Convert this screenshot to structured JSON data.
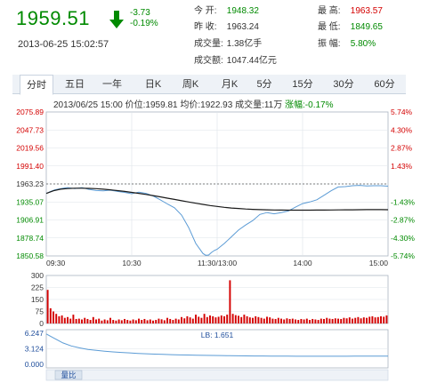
{
  "quote": {
    "price": "1959.51",
    "change": "-3.73",
    "change_pct": "-0.19%",
    "timestamp": "2013-06-25 15:02:57",
    "stats": [
      {
        "label": "今  开:",
        "value": "1948.32",
        "color": "green"
      },
      {
        "label": "昨  收:",
        "value": "1963.24",
        "color": "neutral"
      },
      {
        "label": "成交量:",
        "value": "1.38亿手",
        "color": "neutral"
      },
      {
        "label": "成交额:",
        "value": "1047.44亿元",
        "color": "neutral"
      },
      {
        "label": "最  高:",
        "value": "1963.57",
        "color": "red"
      },
      {
        "label": "最  低:",
        "value": "1849.65",
        "color": "green"
      },
      {
        "label": "振  幅:",
        "value": "5.80%",
        "color": "green"
      }
    ]
  },
  "tabs": [
    "分时",
    "五日",
    "一年",
    "日K",
    "周K",
    "月K",
    "5分",
    "15分",
    "30分",
    "60分"
  ],
  "active_tab": 0,
  "info_line": {
    "datetime": "2013/06/25 15:00",
    "price": "价位:1959.81",
    "avg": "均价:1922.93",
    "volume": "成交量:11万",
    "change": "涨幅:-0.17%"
  },
  "chart_data": [
    {
      "type": "line",
      "title": "",
      "x_ticks": [
        "09:30",
        "10:30",
        "11:30/13:00",
        "14:00",
        "15:00"
      ],
      "y_ticks_left": [
        "2075.89",
        "2047.73",
        "2019.56",
        "1991.40",
        "1963.23",
        "1935.07",
        "1906.91",
        "1878.74",
        "1850.58"
      ],
      "y_ticks_right": [
        "5.74%",
        "4.30%",
        "2.87%",
        "1.43%",
        "",
        "-1.43%",
        "-2.87%",
        "-4.30%",
        "-5.74%"
      ],
      "ylim": [
        1850.58,
        2075.89
      ],
      "reference_close": 1963.23,
      "series": [
        {
          "x": [
            0,
            3,
            6,
            9,
            12,
            15,
            20,
            25,
            30,
            35,
            40,
            45,
            50,
            55,
            60,
            65,
            70,
            75,
            80,
            85,
            90,
            95,
            100,
            105,
            110,
            112,
            114,
            116,
            118,
            120,
            125,
            130,
            135,
            140,
            145,
            150,
            155,
            160,
            165,
            170,
            175,
            180,
            185,
            190,
            195,
            200,
            205,
            210,
            215,
            220,
            225,
            230,
            235,
            240
          ],
          "values": [
            1948.3,
            1951.5,
            1954.0,
            1955.5,
            1956.5,
            1957.5,
            1956.0,
            1957.5,
            1954.8,
            1953.0,
            1952.5,
            1953.5,
            1951.5,
            1950.0,
            1948.0,
            1950.5,
            1948.5,
            1944.5,
            1938.5,
            1932.0,
            1926.0,
            1914.5,
            1895.0,
            1870.0,
            1854.5,
            1851.5,
            1852.0,
            1856.0,
            1859.0,
            1861.0,
            1870.0,
            1880.5,
            1891.0,
            1899.0,
            1906.0,
            1915.5,
            1918.5,
            1916.5,
            1918.5,
            1921.0,
            1927.0,
            1932.5,
            1935.0,
            1938.5,
            1945.5,
            1952.5,
            1958.5,
            1959.0,
            1960.5,
            1961.0,
            1960.0,
            1960.5,
            1960.5,
            1959.8
          ]
        },
        {
          "x": [
            0,
            5,
            10,
            15,
            20,
            25,
            30,
            35,
            40,
            45,
            50,
            55,
            60,
            65,
            70,
            75,
            80,
            85,
            90,
            95,
            100,
            105,
            110,
            115,
            120,
            125,
            130,
            135,
            140,
            145,
            150,
            155,
            160,
            165,
            170,
            175,
            180,
            185,
            190,
            195,
            200,
            205,
            210,
            215,
            220,
            225,
            230,
            235,
            240
          ],
          "values": [
            1948.3,
            1952.5,
            1955.0,
            1956.0,
            1956.5,
            1956.5,
            1956.3,
            1955.8,
            1955.0,
            1954.0,
            1952.8,
            1951.5,
            1950.0,
            1948.5,
            1946.8,
            1945.0,
            1943.0,
            1941.0,
            1939.0,
            1937.0,
            1935.0,
            1933.0,
            1931.2,
            1929.5,
            1928.0,
            1926.7,
            1925.6,
            1924.8,
            1924.0,
            1923.5,
            1923.0,
            1922.8,
            1922.5,
            1922.3,
            1922.2,
            1922.2,
            1922.2,
            1922.2,
            1922.3,
            1922.4,
            1922.5,
            1922.6,
            1922.7,
            1922.8,
            1922.9,
            1923.0,
            1923.1,
            1923.1,
            1922.9
          ]
        }
      ]
    },
    {
      "type": "bar",
      "title": "",
      "y_ticks": [
        "300",
        "225",
        "150",
        "75",
        "0"
      ],
      "ylim": [
        0,
        300
      ],
      "values": [
        210,
        95,
        75,
        60,
        45,
        50,
        35,
        40,
        30,
        55,
        28,
        30,
        25,
        35,
        28,
        22,
        40,
        25,
        30,
        18,
        25,
        20,
        35,
        22,
        18,
        25,
        20,
        28,
        22,
        18,
        25,
        20,
        30,
        22,
        28,
        20,
        25,
        18,
        22,
        30,
        26,
        20,
        35,
        28,
        22,
        30,
        25,
        40,
        32,
        45,
        38,
        30,
        55,
        42,
        35,
        60,
        40,
        50,
        45,
        38,
        42,
        50,
        45,
        55,
        270,
        60,
        52,
        48,
        40,
        55,
        45,
        38,
        35,
        45,
        40,
        35,
        30,
        42,
        38,
        30,
        28,
        35,
        30,
        25,
        32,
        28,
        30,
        25,
        22,
        28,
        25,
        30,
        22,
        28,
        25,
        22,
        30,
        28,
        35,
        30,
        28,
        32,
        30,
        28,
        35,
        32,
        38,
        30,
        35,
        40,
        32,
        38,
        35,
        42,
        45,
        38,
        40,
        45,
        42,
        50
      ]
    },
    {
      "type": "line",
      "title": "",
      "label": "LB: 1.651",
      "y_ticks": [
        "6.247",
        "3.124",
        "0.000"
      ],
      "ylim": [
        0,
        6.247
      ],
      "values": [
        6.1,
        5.2,
        4.3,
        3.7,
        3.3,
        3.0,
        2.8,
        2.65,
        2.5,
        2.4,
        2.3,
        2.2,
        2.12,
        2.05,
        2.0,
        1.95,
        1.9,
        1.87,
        1.84,
        1.81,
        1.79,
        1.76,
        1.74,
        1.72,
        1.7,
        1.68,
        1.67,
        1.66,
        1.65,
        1.64,
        1.63,
        1.63,
        1.62,
        1.62,
        1.62,
        1.63,
        1.63,
        1.64,
        1.64,
        1.65,
        1.65,
        1.651
      ]
    }
  ],
  "footer_label": "量比",
  "colors": {
    "price_line": "#5b9bd5",
    "avg_line": "#1a1a1a",
    "up": "#d40000",
    "down": "#008a00",
    "volume_bar": "#d40000",
    "lb_line": "#5b9bd5"
  }
}
